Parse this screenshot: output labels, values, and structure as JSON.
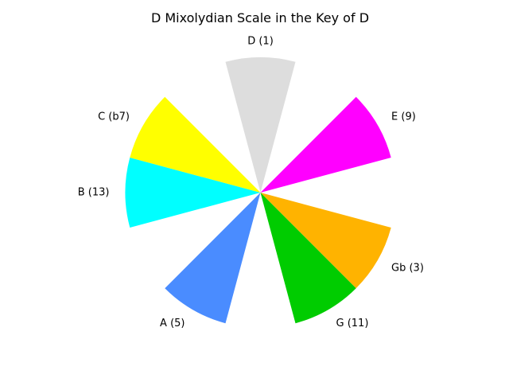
{
  "chart_data": {
    "type": "pie",
    "title": "D Mixolydian Scale in the Key of D",
    "slices": [
      {
        "label": "D (1)",
        "start_deg": 75,
        "end_deg": 105,
        "color": "#dddddd"
      },
      {
        "label": "E (9)",
        "start_deg": 15,
        "end_deg": 45,
        "color": "#ff00ff"
      },
      {
        "label": "Gb (3)",
        "start_deg": -45,
        "end_deg": -15,
        "color": "#ffb300"
      },
      {
        "label": "G (11)",
        "start_deg": -75,
        "end_deg": -45,
        "color": "#00cc00"
      },
      {
        "label": "A (5)",
        "start_deg": -135,
        "end_deg": -105,
        "color": "#4a8cff"
      },
      {
        "label": "B (13)",
        "start_deg": 165,
        "end_deg": 195,
        "color": "#00ffff"
      },
      {
        "label": "C (b7)",
        "start_deg": 135,
        "end_deg": 165,
        "color": "#ffff00"
      }
    ]
  }
}
